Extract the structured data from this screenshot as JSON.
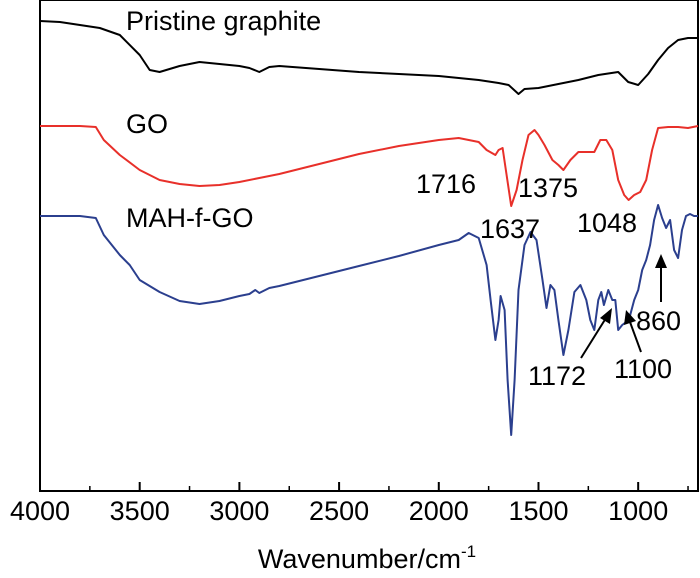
{
  "chart_data": {
    "type": "line",
    "title": "",
    "xlabel": "Wavenumber/cm",
    "xlabel_superscript": "-1",
    "ylabel": "",
    "xlim": [
      4000,
      700
    ],
    "x_reversed": true,
    "y_ticks_shown": false,
    "x_ticks": [
      4000,
      3500,
      3000,
      2500,
      2000,
      1500,
      1000
    ],
    "x_tick_labels": [
      "4000",
      "3500",
      "3000",
      "2500",
      "2000",
      "1500",
      "1000"
    ],
    "series": [
      {
        "name": "Pristine graphite",
        "color": "#000000",
        "points": [
          [
            4000,
            21
          ],
          [
            3900,
            22
          ],
          [
            3800,
            25
          ],
          [
            3700,
            28
          ],
          [
            3600,
            35
          ],
          [
            3500,
            55
          ],
          [
            3450,
            70
          ],
          [
            3400,
            72
          ],
          [
            3300,
            66
          ],
          [
            3200,
            62
          ],
          [
            3100,
            64
          ],
          [
            3000,
            66
          ],
          [
            2950,
            68
          ],
          [
            2900,
            72
          ],
          [
            2850,
            67
          ],
          [
            2800,
            66
          ],
          [
            2600,
            69
          ],
          [
            2400,
            72
          ],
          [
            2200,
            74
          ],
          [
            2000,
            76
          ],
          [
            1800,
            80
          ],
          [
            1700,
            83
          ],
          [
            1650,
            85
          ],
          [
            1600,
            94
          ],
          [
            1570,
            89
          ],
          [
            1500,
            88
          ],
          [
            1400,
            84
          ],
          [
            1300,
            80
          ],
          [
            1200,
            75
          ],
          [
            1100,
            72
          ],
          [
            1050,
            82
          ],
          [
            1000,
            85
          ],
          [
            950,
            74
          ],
          [
            900,
            60
          ],
          [
            850,
            48
          ],
          [
            800,
            40
          ],
          [
            750,
            38
          ],
          [
            700,
            38
          ]
        ]
      },
      {
        "name": "GO",
        "color": "#e8302a",
        "points": [
          [
            4000,
            126
          ],
          [
            3800,
            126
          ],
          [
            3720,
            127
          ],
          [
            3680,
            140
          ],
          [
            3600,
            155
          ],
          [
            3500,
            170
          ],
          [
            3400,
            180
          ],
          [
            3300,
            184
          ],
          [
            3200,
            186
          ],
          [
            3100,
            185
          ],
          [
            3000,
            182
          ],
          [
            2900,
            178
          ],
          [
            2800,
            174
          ],
          [
            2600,
            164
          ],
          [
            2400,
            154
          ],
          [
            2200,
            146
          ],
          [
            2000,
            140
          ],
          [
            1900,
            138
          ],
          [
            1800,
            142
          ],
          [
            1760,
            150
          ],
          [
            1716,
            155
          ],
          [
            1700,
            150
          ],
          [
            1680,
            148
          ],
          [
            1660,
            175
          ],
          [
            1637,
            206
          ],
          [
            1610,
            190
          ],
          [
            1580,
            160
          ],
          [
            1550,
            135
          ],
          [
            1520,
            130
          ],
          [
            1500,
            135
          ],
          [
            1470,
            145
          ],
          [
            1430,
            160
          ],
          [
            1400,
            165
          ],
          [
            1375,
            170
          ],
          [
            1340,
            160
          ],
          [
            1300,
            152
          ],
          [
            1260,
            152
          ],
          [
            1220,
            152
          ],
          [
            1190,
            140
          ],
          [
            1160,
            140
          ],
          [
            1130,
            150
          ],
          [
            1100,
            180
          ],
          [
            1070,
            195
          ],
          [
            1048,
            200
          ],
          [
            1020,
            195
          ],
          [
            990,
            192
          ],
          [
            960,
            180
          ],
          [
            930,
            150
          ],
          [
            900,
            128
          ],
          [
            850,
            127
          ],
          [
            800,
            127
          ],
          [
            750,
            128
          ],
          [
            700,
            126
          ]
        ]
      },
      {
        "name": "MAH-f-GO",
        "color": "#2b3f8e",
        "points": [
          [
            4000,
            216
          ],
          [
            3800,
            216
          ],
          [
            3720,
            218
          ],
          [
            3680,
            235
          ],
          [
            3600,
            255
          ],
          [
            3550,
            265
          ],
          [
            3500,
            280
          ],
          [
            3400,
            292
          ],
          [
            3300,
            301
          ],
          [
            3200,
            304
          ],
          [
            3100,
            301
          ],
          [
            3000,
            296
          ],
          [
            2950,
            294
          ],
          [
            2920,
            290
          ],
          [
            2900,
            293
          ],
          [
            2850,
            288
          ],
          [
            2800,
            286
          ],
          [
            2600,
            276
          ],
          [
            2400,
            266
          ],
          [
            2200,
            256
          ],
          [
            2000,
            245
          ],
          [
            1900,
            240
          ],
          [
            1850,
            233
          ],
          [
            1800,
            238
          ],
          [
            1760,
            265
          ],
          [
            1740,
            300
          ],
          [
            1716,
            340
          ],
          [
            1700,
            320
          ],
          [
            1690,
            296
          ],
          [
            1670,
            310
          ],
          [
            1655,
            380
          ],
          [
            1637,
            435
          ],
          [
            1620,
            380
          ],
          [
            1600,
            290
          ],
          [
            1570,
            245
          ],
          [
            1540,
            232
          ],
          [
            1510,
            240
          ],
          [
            1480,
            280
          ],
          [
            1460,
            308
          ],
          [
            1440,
            285
          ],
          [
            1420,
            290
          ],
          [
            1400,
            320
          ],
          [
            1375,
            355
          ],
          [
            1350,
            330
          ],
          [
            1320,
            292
          ],
          [
            1290,
            285
          ],
          [
            1260,
            300
          ],
          [
            1240,
            320
          ],
          [
            1220,
            330
          ],
          [
            1200,
            300
          ],
          [
            1185,
            292
          ],
          [
            1172,
            305
          ],
          [
            1150,
            290
          ],
          [
            1130,
            300
          ],
          [
            1115,
            300
          ],
          [
            1100,
            330
          ],
          [
            1080,
            325
          ],
          [
            1060,
            322
          ],
          [
            1040,
            315
          ],
          [
            1020,
            300
          ],
          [
            1000,
            290
          ],
          [
            980,
            270
          ],
          [
            960,
            260
          ],
          [
            940,
            245
          ],
          [
            920,
            220
          ],
          [
            900,
            205
          ],
          [
            880,
            218
          ],
          [
            860,
            228
          ],
          [
            840,
            220
          ],
          [
            820,
            250
          ],
          [
            800,
            258
          ],
          [
            780,
            230
          ],
          [
            760,
            216
          ],
          [
            740,
            214
          ],
          [
            720,
            216
          ],
          [
            700,
            216
          ]
        ]
      }
    ],
    "series_labels": [
      {
        "text": "Pristine graphite",
        "series": "Pristine graphite"
      },
      {
        "text": "GO",
        "series": "GO"
      },
      {
        "text": "MAH-f-GO",
        "series": "MAH-f-GO"
      }
    ],
    "annotations": [
      {
        "text": "1716",
        "x": 1716
      },
      {
        "text": "1375",
        "x": 1375
      },
      {
        "text": "1637",
        "x": 1637
      },
      {
        "text": "1048",
        "x": 1048
      },
      {
        "text": "860",
        "x": 860,
        "arrow": true
      },
      {
        "text": "1172",
        "x": 1172,
        "arrow": true
      },
      {
        "text": "1100",
        "x": 1100,
        "arrow": true
      }
    ]
  }
}
